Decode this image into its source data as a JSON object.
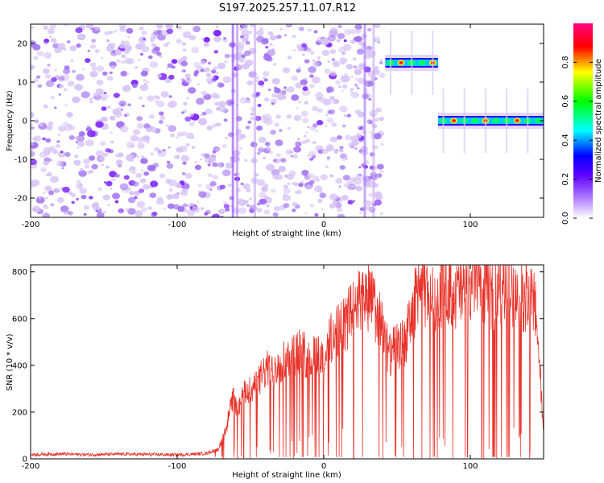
{
  "title": "S197.2025.257.11.07.R12",
  "chart_data": [
    {
      "type": "heatmap",
      "xlabel": "Height of straight line (km)",
      "ylabel": "Frequency (Hz)",
      "xlim": [
        -200,
        150
      ],
      "ylim": [
        -25,
        25
      ],
      "xticks": [
        "-200",
        "-100",
        "0",
        "100"
      ],
      "yticks": [
        "20",
        "10",
        "0",
        "-10",
        "-20"
      ],
      "colorbar": {
        "label": "Normalized spectral amplitude",
        "range": [
          0.0,
          1.0
        ],
        "ticks": [
          "0.0",
          "0.2",
          "0.4",
          "0.6",
          "0.8"
        ],
        "colors": [
          "#ffffff",
          "#8000ff",
          "#0000ff",
          "#00ffff",
          "#00ff00",
          "#ffff00",
          "#ff0000",
          "#ff0080"
        ]
      },
      "features": [
        {
          "kind": "noise",
          "x_range": [
            -200,
            40
          ],
          "freq_range": [
            -25,
            25
          ],
          "amplitude": 0.15
        },
        {
          "kind": "tone",
          "x_range": [
            42,
            78
          ],
          "freq": 15,
          "amplitude": 0.85
        },
        {
          "kind": "tone",
          "x_range": [
            78,
            150
          ],
          "freq": 0,
          "amplitude": 0.9
        }
      ]
    },
    {
      "type": "line",
      "xlabel": "Height of straight line (km)",
      "ylabel": "SNR (10 * v/v)",
      "xlim": [
        -200,
        150
      ],
      "ylim": [
        0,
        830
      ],
      "xticks": [
        "-200",
        "-100",
        "0",
        "100"
      ],
      "yticks": [
        "800",
        "600",
        "400",
        "200",
        "0"
      ],
      "series": [
        {
          "color": "#e8332a",
          "x": [
            -200,
            -180,
            -160,
            -140,
            -120,
            -100,
            -80,
            -72,
            -66,
            -62,
            -58,
            -54,
            -50,
            -45,
            -40,
            -35,
            -30,
            -25,
            -20,
            -15,
            -10,
            -5,
            0,
            5,
            10,
            15,
            20,
            25,
            30,
            35,
            40,
            45,
            50,
            55,
            60,
            65,
            70,
            75,
            80,
            85,
            90,
            95,
            100,
            105,
            110,
            115,
            120,
            125,
            130,
            135,
            140,
            145,
            150
          ],
          "values": [
            15,
            18,
            15,
            17,
            16,
            14,
            20,
            40,
            150,
            260,
            220,
            280,
            300,
            320,
            380,
            380,
            420,
            430,
            450,
            460,
            420,
            460,
            420,
            520,
            560,
            580,
            640,
            680,
            700,
            640,
            560,
            440,
            480,
            500,
            600,
            760,
            700,
            680,
            720,
            740,
            700,
            720,
            760,
            780,
            730,
            700,
            740,
            750,
            720,
            700,
            680,
            640,
            100
          ]
        }
      ]
    }
  ]
}
